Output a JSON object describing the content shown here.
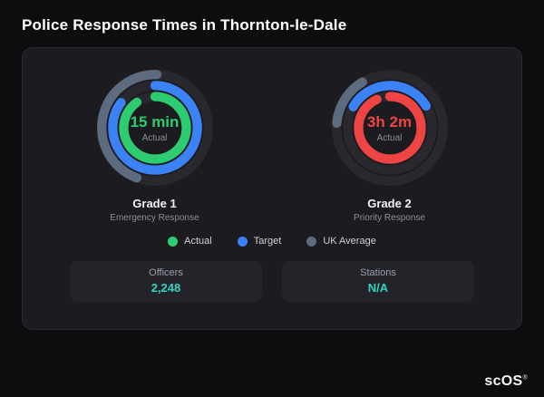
{
  "page_title": "Police Response Times in Thornton-le-Dale",
  "chart_data": {
    "type": "radial-gauge",
    "track_color": "#28282e",
    "gauges": [
      {
        "name": "Grade 1",
        "subtitle": "Emergency Response",
        "value": "15 min",
        "value_color": "#2ecc71",
        "caption": "Actual",
        "rings": [
          {
            "series": "UK Average",
            "color": "#5d6b7e",
            "fraction": 0.45,
            "start_deg": 200,
            "radius": 63
          },
          {
            "series": "Target",
            "color": "#3b82f6",
            "fraction": 0.85,
            "start_deg": 0,
            "radius": 50
          },
          {
            "series": "Actual",
            "color": "#2ecc71",
            "fraction": 0.9,
            "start_deg": 0,
            "radius": 37
          }
        ]
      },
      {
        "name": "Grade 2",
        "subtitle": "Priority Response",
        "value": "3h 2m",
        "value_color": "#ef4444",
        "caption": "Actual",
        "rings": [
          {
            "series": "UK Average",
            "color": "#5d6b7e",
            "fraction": 0.15,
            "start_deg": 275,
            "radius": 63
          },
          {
            "series": "Target",
            "color": "#3b82f6",
            "fraction": 0.33,
            "start_deg": 300,
            "radius": 50
          },
          {
            "series": "Actual",
            "color": "#ef4444",
            "fraction": 0.93,
            "start_deg": 0,
            "radius": 37
          }
        ]
      }
    ],
    "legend": [
      {
        "label": "Actual",
        "color": "#2ecc71"
      },
      {
        "label": "Target",
        "color": "#3b82f6"
      },
      {
        "label": "UK Average",
        "color": "#5d6b7e"
      }
    ]
  },
  "stats": {
    "value_color": "#2dd4bf",
    "items": [
      {
        "label": "Officers",
        "value": "2,248"
      },
      {
        "label": "Stations",
        "value": "N/A"
      }
    ]
  },
  "brand": {
    "text": "scOS",
    "reg": "®"
  }
}
